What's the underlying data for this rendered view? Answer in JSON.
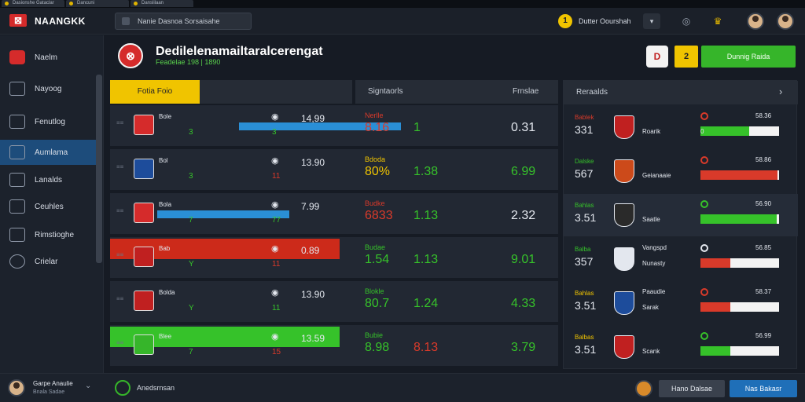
{
  "os_tabs": [
    "Dasionshe Gataclar",
    "Dancuni",
    "Danslilaan"
  ],
  "app": {
    "title": "NAANGKK",
    "search": "Nanie Dasnoa Sorsaisahe"
  },
  "topbar": {
    "coin_value": "Dutter Oourshah",
    "coin_symbol": "1",
    "dropdown": "▾"
  },
  "sidebar": {
    "items": [
      {
        "label": "Naelm"
      },
      {
        "label": "Nayoog"
      },
      {
        "label": "Fenutlog"
      },
      {
        "label": "Aumlama"
      },
      {
        "label": "Lanalds"
      },
      {
        "label": "Ceuhles"
      },
      {
        "label": "Rimstioghe"
      },
      {
        "label": "Crielar"
      }
    ]
  },
  "user": {
    "name": "Garpe Anaulie",
    "sub": "Bnala Sadae"
  },
  "header": {
    "title": "Dedilelenamailtaralcerengat",
    "subtitle": "Feadelae 198 | 1890",
    "badge_num": "2",
    "cta": "Dunnig Raida"
  },
  "columns": {
    "tab_active": "Fotia Foio",
    "c2": "Signtaorls",
    "c3": "Frnslae",
    "c4": "Reraalds"
  },
  "rows": [
    {
      "team": "Bole",
      "s1": "3",
      "s2": "3",
      "odds": "14,99",
      "lab": "Nerlle",
      "lab_color": "#d93a2a",
      "v1": "8.16",
      "v1c": "#d93a2a",
      "v2": "1",
      "v2c": "#36c22a",
      "v3": "0.31",
      "v3c": "#e3e7ee"
    },
    {
      "team": "Bol",
      "s1": "3",
      "s2": "11",
      "odds": "13.90",
      "lab": "Bdoda",
      "lab_color": "#f0c400",
      "v1": "80%",
      "v1c": "#f0c400",
      "v2": "1.38",
      "v2c": "#36c22a",
      "v3": "6.99",
      "v3c": "#36c22a"
    },
    {
      "team": "Bola",
      "s1": "7",
      "s2": "77",
      "odds": "7.99",
      "lab": "Budke",
      "lab_color": "#d93a2a",
      "v1": "6833",
      "v1c": "#d93a2a",
      "v2": "1.13",
      "v2c": "#36c22a",
      "v3": "2.32",
      "v3c": "#e3e7ee"
    },
    {
      "team": "Bab",
      "s1": "Y",
      "s2": "11",
      "odds": "0.89",
      "lab": "Budae",
      "lab_color": "#36c22a",
      "v1": "1.54",
      "v1c": "#36c22a",
      "v2": "1.13",
      "v2c": "#36c22a",
      "v3": "9.01",
      "v3c": "#36c22a"
    },
    {
      "team": "Bolda",
      "s1": "Y",
      "s2": "11",
      "odds": "13.90",
      "lab": "Blokle",
      "lab_color": "#36c22a",
      "v1": "80.7",
      "v1c": "#36c22a",
      "v2": "1.24",
      "v2c": "#36c22a",
      "v3": "4.33",
      "v3c": "#36c22a"
    },
    {
      "team": "Blee",
      "s1": "7",
      "s2": "15",
      "odds": "13.59",
      "lab": "Bubie",
      "lab_color": "#36c22a",
      "v1": "8.98",
      "v1c": "#36c22a",
      "v2": "8.13",
      "v2c": "#d93a2a",
      "v3": "3.79",
      "v3c": "#36c22a"
    }
  ],
  "right": [
    {
      "label": "Bablek",
      "lab_color": "#d93a2a",
      "val": "331",
      "team": "Roarik",
      "team2": "",
      "pct": "58.36",
      "ind_color": "#d93a2a",
      "small": "0",
      "fill": 0.62,
      "fill_color": "#36c22a"
    },
    {
      "label": "Dalske",
      "lab_color": "#36c22a",
      "val": "567",
      "team": "Geianaaie",
      "team2": "",
      "pct": "58.86",
      "ind_color": "#d93a2a",
      "small": "",
      "fill": 0.98,
      "fill_color": "#d93a2a"
    },
    {
      "label": "Bahlas",
      "lab_color": "#36c22a",
      "val": "3.51",
      "team": "Saatle",
      "team2": "",
      "pct": "56.90",
      "ind_color": "#36c22a",
      "small": "",
      "fill": 0.97,
      "fill_color": "#36c22a"
    },
    {
      "label": "Balba",
      "lab_color": "#36c22a",
      "val": "357",
      "team": "Nunasty",
      "team2": "Vangspd",
      "pct": "56.85",
      "ind_color": "#e3e7ee",
      "small": "",
      "fill": 0.38,
      "fill_color": "#d93a2a"
    },
    {
      "label": "Bahlas",
      "lab_color": "#f0c400",
      "val": "3.51",
      "team": "Sarak",
      "team2": "Paaudie",
      "pct": "58.37",
      "ind_color": "#d93a2a",
      "small": "",
      "fill": 0.38,
      "fill_color": "#d93a2a"
    },
    {
      "label": "Balbas",
      "lab_color": "#f0c400",
      "val": "3.51",
      "team": "Scank",
      "team2": "",
      "pct": "56.99",
      "ind_color": "#36c22a",
      "small": "",
      "fill": 0.38,
      "fill_color": "#36c22a"
    }
  ],
  "bottom": {
    "text": "Anedsrnsan",
    "btn1": "Hano Dalsae",
    "btn2": "Nas Bakasr"
  }
}
